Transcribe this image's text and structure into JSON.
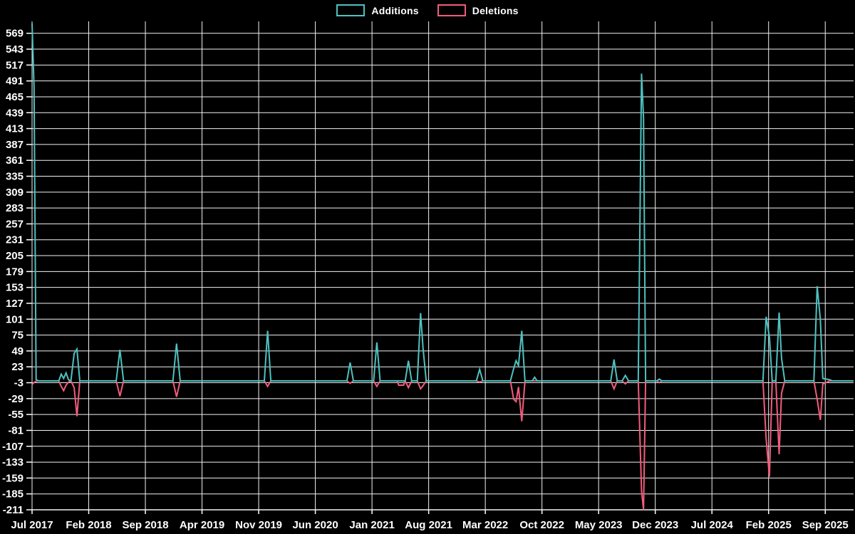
{
  "app": {
    "background_color": "#000000",
    "grid_color": "#f2f2f2",
    "text_color": "#ffffff"
  },
  "legend": {
    "items": [
      {
        "label": "Additions",
        "color": "#4EC2C0"
      },
      {
        "label": "Deletions",
        "color": "#F25C7C"
      }
    ]
  },
  "chart_data": {
    "type": "line",
    "title": "",
    "xlabel": "",
    "ylabel": "",
    "grid": true,
    "legend_position": "top-center",
    "background": "#000000",
    "ylim": [
      -211,
      585
    ],
    "y_ticks": [
      569,
      543,
      517,
      491,
      465,
      439,
      413,
      387,
      361,
      335,
      309,
      283,
      257,
      231,
      205,
      179,
      153,
      127,
      101,
      75,
      49,
      23,
      -3,
      -29,
      -55,
      -81,
      -107,
      -133,
      -159,
      -185,
      -211
    ],
    "xlim_months": [
      0,
      101.5
    ],
    "x_tick_labels": [
      "Jul 2017",
      "Feb 2018",
      "Sep 2018",
      "Apr 2019",
      "Nov 2019",
      "Jun 2020",
      "Jan 2021",
      "Aug 2021",
      "Mar 2022",
      "Oct 2022",
      "May 2023",
      "Dec 2023",
      "Jul 2024",
      "Feb 2025",
      "Sep 2025"
    ],
    "x_tick_month_positions": [
      0,
      7,
      14,
      21,
      28,
      35,
      42,
      49,
      56,
      63,
      70,
      77,
      84,
      91,
      98
    ],
    "series": [
      {
        "name": "Additions",
        "color": "#4EC2C0",
        "points": [
          [
            0,
            585
          ],
          [
            0.25,
            480
          ],
          [
            0.5,
            2
          ],
          [
            0.8,
            0
          ],
          [
            3.3,
            0
          ],
          [
            3.6,
            11
          ],
          [
            3.9,
            4
          ],
          [
            4.2,
            13
          ],
          [
            4.5,
            2
          ],
          [
            4.8,
            0
          ],
          [
            5.2,
            45
          ],
          [
            5.55,
            52
          ],
          [
            5.9,
            0
          ],
          [
            10.4,
            0
          ],
          [
            10.85,
            51
          ],
          [
            11.3,
            0
          ],
          [
            17.4,
            0
          ],
          [
            17.85,
            61
          ],
          [
            18.3,
            0
          ],
          [
            28.7,
            0
          ],
          [
            29.1,
            82
          ],
          [
            29.5,
            0
          ],
          [
            38.9,
            0
          ],
          [
            39.3,
            30
          ],
          [
            39.7,
            0
          ],
          [
            42.2,
            0
          ],
          [
            42.6,
            63
          ],
          [
            43.0,
            0
          ],
          [
            46.1,
            0
          ],
          [
            46.5,
            33
          ],
          [
            46.9,
            0
          ],
          [
            47.6,
            0
          ],
          [
            48.0,
            111
          ],
          [
            48.3,
            54
          ],
          [
            48.7,
            0
          ],
          [
            54.9,
            0
          ],
          [
            55.3,
            19
          ],
          [
            55.7,
            0
          ],
          [
            59.1,
            0
          ],
          [
            59.5,
            20
          ],
          [
            59.8,
            33
          ],
          [
            60.1,
            25
          ],
          [
            60.5,
            82
          ],
          [
            60.9,
            0
          ],
          [
            61.8,
            0
          ],
          [
            62.1,
            6
          ],
          [
            62.4,
            0
          ],
          [
            71.5,
            0
          ],
          [
            71.9,
            35
          ],
          [
            72.3,
            0
          ],
          [
            72.9,
            0
          ],
          [
            73.3,
            9
          ],
          [
            73.7,
            0
          ],
          [
            74.9,
            0
          ],
          [
            75.3,
            503
          ],
          [
            75.55,
            430
          ],
          [
            75.8,
            0
          ],
          [
            77.2,
            0
          ],
          [
            77.5,
            3
          ],
          [
            77.8,
            0
          ],
          [
            90.3,
            0
          ],
          [
            90.7,
            105
          ],
          [
            91.1,
            72
          ],
          [
            91.45,
            0
          ],
          [
            91.9,
            0
          ],
          [
            92.3,
            112
          ],
          [
            92.6,
            37
          ],
          [
            93.0,
            0
          ],
          [
            96.6,
            0
          ],
          [
            97.0,
            155
          ],
          [
            97.4,
            100
          ],
          [
            97.7,
            4
          ],
          [
            98.1,
            3
          ],
          [
            98.5,
            2
          ],
          [
            98.9,
            0
          ],
          [
            101.5,
            0
          ]
        ]
      },
      {
        "name": "Deletions",
        "color": "#F25C7C",
        "points": [
          [
            0,
            -6
          ],
          [
            0.3,
            -2
          ],
          [
            0.6,
            0
          ],
          [
            3.3,
            0
          ],
          [
            3.6,
            -9
          ],
          [
            3.9,
            -16
          ],
          [
            4.2,
            -7
          ],
          [
            4.5,
            -2
          ],
          [
            4.8,
            0
          ],
          [
            5.2,
            -11
          ],
          [
            5.55,
            -58
          ],
          [
            5.9,
            0
          ],
          [
            10.4,
            0
          ],
          [
            10.85,
            -25
          ],
          [
            11.3,
            0
          ],
          [
            17.4,
            0
          ],
          [
            17.85,
            -26
          ],
          [
            18.3,
            0
          ],
          [
            28.7,
            0
          ],
          [
            29.1,
            -9
          ],
          [
            29.5,
            0
          ],
          [
            38.9,
            0
          ],
          [
            39.3,
            -4
          ],
          [
            39.7,
            0
          ],
          [
            42.2,
            0
          ],
          [
            42.6,
            -9
          ],
          [
            43.0,
            0
          ],
          [
            45.1,
            0
          ],
          [
            45.3,
            -7
          ],
          [
            45.9,
            -7
          ],
          [
            46.1,
            0
          ],
          [
            46.5,
            -11
          ],
          [
            46.9,
            0
          ],
          [
            47.6,
            0
          ],
          [
            48.0,
            -13
          ],
          [
            48.3,
            -8
          ],
          [
            48.7,
            0
          ],
          [
            54.9,
            0
          ],
          [
            55.3,
            -2
          ],
          [
            55.7,
            0
          ],
          [
            59.1,
            0
          ],
          [
            59.5,
            -30
          ],
          [
            59.8,
            -34
          ],
          [
            60.1,
            -10
          ],
          [
            60.5,
            -66
          ],
          [
            60.9,
            0
          ],
          [
            71.5,
            0
          ],
          [
            71.9,
            -13
          ],
          [
            72.3,
            0
          ],
          [
            72.9,
            0
          ],
          [
            73.3,
            -5
          ],
          [
            73.7,
            0
          ],
          [
            74.9,
            0
          ],
          [
            75.3,
            -180
          ],
          [
            75.55,
            -211
          ],
          [
            75.8,
            0
          ],
          [
            77.2,
            0
          ],
          [
            77.5,
            -3
          ],
          [
            77.8,
            0
          ],
          [
            90.3,
            0
          ],
          [
            90.7,
            -95
          ],
          [
            91.1,
            -157
          ],
          [
            91.45,
            0
          ],
          [
            91.9,
            0
          ],
          [
            92.3,
            -120
          ],
          [
            92.6,
            -20
          ],
          [
            93.0,
            0
          ],
          [
            96.6,
            0
          ],
          [
            97.0,
            -30
          ],
          [
            97.4,
            -64
          ],
          [
            97.7,
            -5
          ],
          [
            98.1,
            -3
          ],
          [
            98.5,
            0
          ],
          [
            101.5,
            0
          ]
        ]
      }
    ]
  }
}
